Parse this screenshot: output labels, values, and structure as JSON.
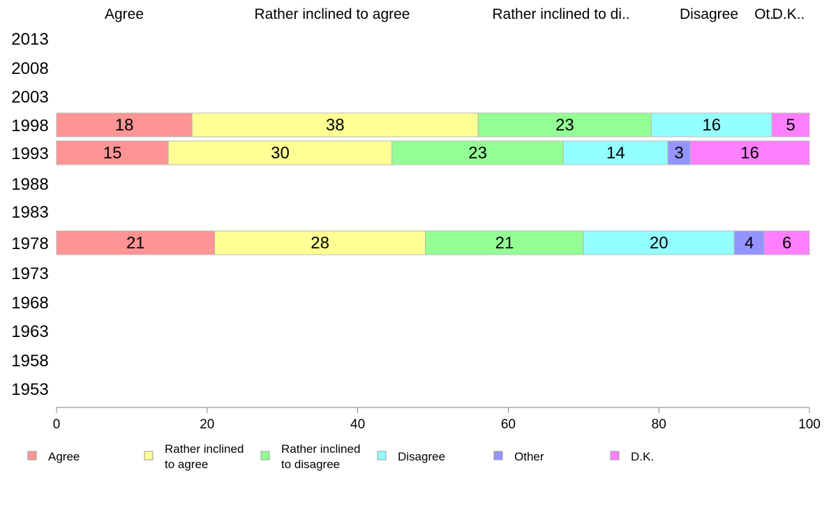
{
  "chart_data": {
    "type": "bar",
    "orientation": "horizontal",
    "stacked": true,
    "header_labels": [
      "Agree",
      "Rather inclined to agree",
      "Rather inclined to di..",
      "Disagree",
      "Ot..",
      "D.K.."
    ],
    "years": [
      "2013",
      "2008",
      "2003",
      "1998",
      "1993",
      "1988",
      "1983",
      "1978",
      "1973",
      "1968",
      "1963",
      "1958",
      "1953"
    ],
    "series": [
      {
        "name": "Agree",
        "legend_lines": [
          "Agree"
        ],
        "color": "#ff9494",
        "values": [
          null,
          null,
          null,
          18,
          15,
          null,
          null,
          21,
          null,
          null,
          null,
          null,
          null
        ]
      },
      {
        "name": "Rather inclined to agree",
        "legend_lines": [
          "Rather inclined",
          "to agree"
        ],
        "color": "#ffff94",
        "values": [
          null,
          null,
          null,
          38,
          30,
          null,
          null,
          28,
          null,
          null,
          null,
          null,
          null
        ]
      },
      {
        "name": "Rather inclined to disagree",
        "legend_lines": [
          "Rather inclined",
          "to disagree"
        ],
        "color": "#94ff94",
        "values": [
          null,
          null,
          null,
          23,
          23,
          null,
          null,
          21,
          null,
          null,
          null,
          null,
          null
        ]
      },
      {
        "name": "Disagree",
        "legend_lines": [
          "Disagree"
        ],
        "color": "#94ffff",
        "values": [
          null,
          null,
          null,
          16,
          14,
          null,
          null,
          20,
          null,
          null,
          null,
          null,
          null
        ]
      },
      {
        "name": "Other",
        "legend_lines": [
          "Other"
        ],
        "color": "#9494ff",
        "values": [
          null,
          null,
          null,
          0,
          3,
          null,
          null,
          4,
          null,
          null,
          null,
          null,
          null
        ]
      },
      {
        "name": "D.K.",
        "legend_lines": [
          "D.K."
        ],
        "color": "#ff80ff",
        "values": [
          null,
          null,
          null,
          5,
          16,
          null,
          null,
          6,
          null,
          null,
          null,
          null,
          null
        ]
      }
    ],
    "xlim": [
      0,
      100
    ],
    "xticks": [
      0,
      20,
      40,
      60,
      80,
      100
    ],
    "grid": false,
    "legend_position": "bottom"
  }
}
